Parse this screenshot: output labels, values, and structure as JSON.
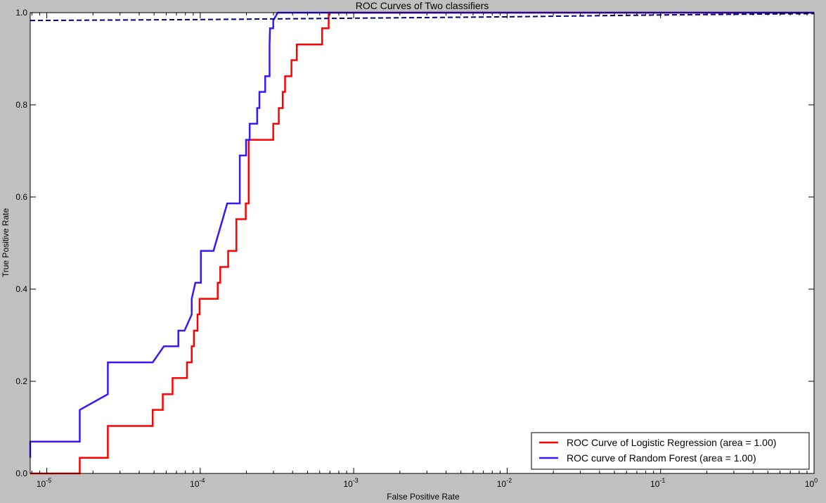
{
  "chart_data": {
    "type": "line",
    "title": "ROC Curves of Two classifiers",
    "xlabel": "False Positive Rate",
    "ylabel": "True Positive Rate",
    "xscale": "log",
    "xlim": [
      7.8e-06,
      1
    ],
    "ylim": [
      0,
      1.0
    ],
    "x_ticks": [
      {
        "value": 1e-05,
        "base": "10",
        "exp": "-5"
      },
      {
        "value": 0.0001,
        "base": "10",
        "exp": "-4"
      },
      {
        "value": 0.001,
        "base": "10",
        "exp": "-3"
      },
      {
        "value": 0.01,
        "base": "10",
        "exp": "-2"
      },
      {
        "value": 0.1,
        "base": "10",
        "exp": "-1"
      },
      {
        "value": 1,
        "base": "10",
        "exp": "0"
      }
    ],
    "y_ticks": [
      "0.0",
      "0.2",
      "0.4",
      "0.6",
      "0.8",
      "1.0"
    ],
    "grid": false,
    "legend_position": "bottom-right",
    "series": [
      {
        "name": "ROC Curve of Logistic Regression (area = 1.00)",
        "color": "#ff0000",
        "style": "solid",
        "points": [
          [
            7.8e-06,
            0
          ],
          [
            1.64e-05,
            0
          ],
          [
            1.64e-05,
            0.034
          ],
          [
            2.5e-05,
            0.034
          ],
          [
            2.5e-05,
            0.103
          ],
          [
            4.9e-05,
            0.103
          ],
          [
            4.9e-05,
            0.138
          ],
          [
            5.7e-05,
            0.138
          ],
          [
            5.7e-05,
            0.172
          ],
          [
            6.6e-05,
            0.172
          ],
          [
            6.6e-05,
            0.207
          ],
          [
            8.2e-05,
            0.207
          ],
          [
            8.2e-05,
            0.241
          ],
          [
            8.8e-05,
            0.241
          ],
          [
            8.8e-05,
            0.276
          ],
          [
            9.1e-05,
            0.276
          ],
          [
            9.1e-05,
            0.31
          ],
          [
            9.6e-05,
            0.31
          ],
          [
            9.6e-05,
            0.345
          ],
          [
            9.9e-05,
            0.345
          ],
          [
            9.9e-05,
            0.379
          ],
          [
            0.00013,
            0.379
          ],
          [
            0.00013,
            0.414
          ],
          [
            0.000135,
            0.414
          ],
          [
            0.000135,
            0.448
          ],
          [
            0.000152,
            0.448
          ],
          [
            0.000152,
            0.483
          ],
          [
            0.000172,
            0.483
          ],
          [
            0.000172,
            0.552
          ],
          [
            0.000198,
            0.552
          ],
          [
            0.000198,
            0.586
          ],
          [
            0.000207,
            0.586
          ],
          [
            0.000207,
            0.724
          ],
          [
            0.000299,
            0.724
          ],
          [
            0.000299,
            0.759
          ],
          [
            0.000325,
            0.759
          ],
          [
            0.000325,
            0.793
          ],
          [
            0.000345,
            0.793
          ],
          [
            0.000345,
            0.828
          ],
          [
            0.000357,
            0.828
          ],
          [
            0.000357,
            0.862
          ],
          [
            0.000393,
            0.862
          ],
          [
            0.000393,
            0.897
          ],
          [
            0.000426,
            0.897
          ],
          [
            0.000426,
            0.931
          ],
          [
            0.000623,
            0.931
          ],
          [
            0.000623,
            0.966
          ],
          [
            0.000687,
            0.966
          ],
          [
            0.000687,
            1.0
          ],
          [
            1,
            1.0
          ]
        ]
      },
      {
        "name": "ROC curve of Random Forest (area = 1.00)",
        "color": "#3a16ff",
        "style": "solid",
        "points": [
          [
            7.8e-06,
            0.034
          ],
          [
            7.8e-06,
            0.069
          ],
          [
            1.64e-05,
            0.069
          ],
          [
            1.64e-05,
            0.138
          ],
          [
            2.5e-05,
            0.172
          ],
          [
            2.5e-05,
            0.241
          ],
          [
            4.9e-05,
            0.241
          ],
          [
            5.8e-05,
            0.276
          ],
          [
            7.2e-05,
            0.276
          ],
          [
            7.2e-05,
            0.31
          ],
          [
            7.9e-05,
            0.31
          ],
          [
            8.8e-05,
            0.345
          ],
          [
            8.8e-05,
            0.379
          ],
          [
            9.3e-05,
            0.414
          ],
          [
            0.000101,
            0.414
          ],
          [
            0.000101,
            0.483
          ],
          [
            0.000122,
            0.483
          ],
          [
            0.00015,
            0.586
          ],
          [
            0.000181,
            0.586
          ],
          [
            0.000181,
            0.69
          ],
          [
            0.000199,
            0.69
          ],
          [
            0.000199,
            0.724
          ],
          [
            0.00021,
            0.724
          ],
          [
            0.00021,
            0.759
          ],
          [
            0.000235,
            0.759
          ],
          [
            0.000235,
            0.793
          ],
          [
            0.000243,
            0.793
          ],
          [
            0.000243,
            0.828
          ],
          [
            0.000265,
            0.828
          ],
          [
            0.000265,
            0.862
          ],
          [
            0.000283,
            0.862
          ],
          [
            0.000283,
            0.931
          ],
          [
            0.000285,
            0.966
          ],
          [
            0.000299,
            0.966
          ],
          [
            0.000299,
            0.983
          ],
          [
            0.00032,
            1.0
          ],
          [
            1,
            1.0
          ]
        ]
      },
      {
        "color": "#000080",
        "style": "dashed",
        "points": [
          [
            7.8e-06,
            0.983
          ],
          [
            9.7e-05,
            0.985
          ],
          [
            0.001,
            0.988
          ],
          [
            0.01,
            0.991
          ],
          [
            0.1,
            0.995
          ],
          [
            1,
            0.998
          ]
        ]
      }
    ]
  }
}
